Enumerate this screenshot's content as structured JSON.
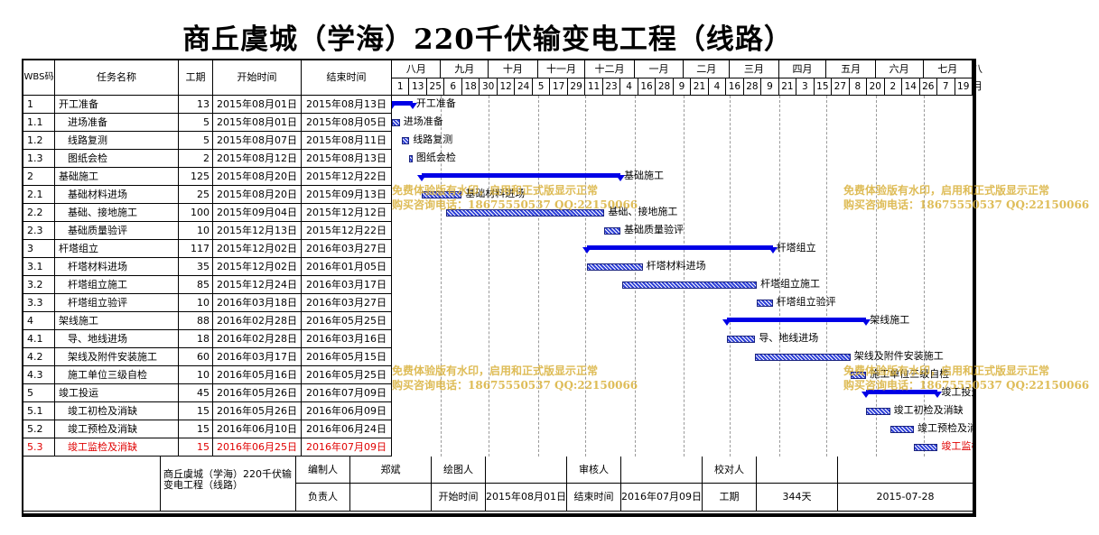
{
  "title": "商丘虞城（学海）220千伏输变电工程（线路）",
  "headers": {
    "wbs": "WBS码",
    "name": "任务名称",
    "duration": "工期",
    "start": "开始时间",
    "end": "结束时间"
  },
  "months": [
    "八月",
    "九月",
    "十月",
    "十一月",
    "十二月",
    "一月",
    "二月",
    "三月",
    "四月",
    "五月",
    "六月",
    "七月",
    "八月"
  ],
  "days": [
    "1",
    "13",
    "25",
    "6",
    "18",
    "30",
    "12",
    "24",
    "5",
    "17",
    "29",
    "11",
    "23",
    "4",
    "16",
    "28",
    "9",
    "21",
    "4",
    "16",
    "28",
    "9",
    "21",
    "3",
    "15",
    "27",
    "8",
    "20",
    "2",
    "14",
    "26",
    "7",
    "19"
  ],
  "tasks": [
    {
      "wbs": "1",
      "name": "开工准备",
      "duration": "13",
      "start": "2015年08月01日",
      "end": "2015年08月13日",
      "summary": true,
      "indent": 0,
      "s": 0,
      "d": 13
    },
    {
      "wbs": "1.1",
      "name": "进场准备",
      "duration": "5",
      "start": "2015年08月01日",
      "end": "2015年08月05日",
      "summary": false,
      "indent": 1,
      "s": 0,
      "d": 5
    },
    {
      "wbs": "1.2",
      "name": "线路复测",
      "duration": "5",
      "start": "2015年08月07日",
      "end": "2015年08月11日",
      "summary": false,
      "indent": 1,
      "s": 6,
      "d": 5
    },
    {
      "wbs": "1.3",
      "name": "图纸会检",
      "duration": "2",
      "start": "2015年08月12日",
      "end": "2015年08月13日",
      "summary": false,
      "indent": 1,
      "s": 11,
      "d": 2
    },
    {
      "wbs": "2",
      "name": "基础施工",
      "duration": "125",
      "start": "2015年08月20日",
      "end": "2015年12月22日",
      "summary": true,
      "indent": 0,
      "s": 19,
      "d": 125
    },
    {
      "wbs": "2.1",
      "name": "基础材料进场",
      "duration": "25",
      "start": "2015年08月20日",
      "end": "2015年09月13日",
      "summary": false,
      "indent": 1,
      "s": 19,
      "d": 25
    },
    {
      "wbs": "2.2",
      "name": "基础、接地施工",
      "duration": "100",
      "start": "2015年09月04日",
      "end": "2015年12月12日",
      "summary": false,
      "indent": 1,
      "s": 34,
      "d": 100
    },
    {
      "wbs": "2.3",
      "name": "基础质量验评",
      "duration": "10",
      "start": "2015年12月13日",
      "end": "2015年12月22日",
      "summary": false,
      "indent": 1,
      "s": 134,
      "d": 10
    },
    {
      "wbs": "3",
      "name": "杆塔组立",
      "duration": "117",
      "start": "2015年12月02日",
      "end": "2016年03月27日",
      "summary": true,
      "indent": 0,
      "s": 123,
      "d": 117
    },
    {
      "wbs": "3.1",
      "name": "杆塔材料进场",
      "duration": "35",
      "start": "2015年12月02日",
      "end": "2016年01月05日",
      "summary": false,
      "indent": 1,
      "s": 123,
      "d": 35
    },
    {
      "wbs": "3.2",
      "name": "杆塔组立施工",
      "duration": "85",
      "start": "2015年12月24日",
      "end": "2016年03月17日",
      "summary": false,
      "indent": 1,
      "s": 145,
      "d": 85
    },
    {
      "wbs": "3.3",
      "name": "杆塔组立验评",
      "duration": "10",
      "start": "2016年03月18日",
      "end": "2016年03月27日",
      "summary": false,
      "indent": 1,
      "s": 230,
      "d": 10
    },
    {
      "wbs": "4",
      "name": "架线施工",
      "duration": "88",
      "start": "2016年02月28日",
      "end": "2016年05月25日",
      "summary": true,
      "indent": 0,
      "s": 211,
      "d": 88
    },
    {
      "wbs": "4.1",
      "name": "导、地线进场",
      "duration": "18",
      "start": "2016年02月28日",
      "end": "2016年03月16日",
      "summary": false,
      "indent": 1,
      "s": 211,
      "d": 18
    },
    {
      "wbs": "4.2",
      "name": "架线及附件安装施工",
      "duration": "60",
      "start": "2016年03月17日",
      "end": "2016年05月15日",
      "summary": false,
      "indent": 1,
      "s": 229,
      "d": 60
    },
    {
      "wbs": "4.3",
      "name": "施工单位三级自检",
      "duration": "10",
      "start": "2016年05月16日",
      "end": "2016年05月25日",
      "summary": false,
      "indent": 1,
      "s": 289,
      "d": 10
    },
    {
      "wbs": "5",
      "name": "竣工投运",
      "duration": "45",
      "start": "2016年05月26日",
      "end": "2016年07月09日",
      "summary": true,
      "indent": 0,
      "s": 299,
      "d": 45
    },
    {
      "wbs": "5.1",
      "name": "竣工初检及消缺",
      "duration": "15",
      "start": "2016年05月26日",
      "end": "2016年06月09日",
      "summary": false,
      "indent": 1,
      "s": 299,
      "d": 15
    },
    {
      "wbs": "5.2",
      "name": "竣工预检及消缺",
      "duration": "15",
      "start": "2016年06月10日",
      "end": "2016年06月24日",
      "summary": false,
      "indent": 1,
      "s": 314,
      "d": 15
    },
    {
      "wbs": "5.3",
      "name": "竣工监检及消缺",
      "duration": "15",
      "start": "2016年06月25日",
      "end": "2016年07月09日",
      "summary": false,
      "indent": 1,
      "s": 329,
      "d": 15,
      "highlight": true
    }
  ],
  "watermark": {
    "line1": "免费体验版有水印，启用和正式版显示正常",
    "line2": "购买咨询电话：18675550537 QQ:22150066"
  },
  "footer": {
    "project": "商丘虞城（学海）220千伏输变电工程（线路）",
    "editor_label": "编制人",
    "editor_value": "郑斌",
    "drawer_label": "绘图人",
    "drawer_value": "",
    "reviewer_label": "审核人",
    "reviewer_value": "",
    "checker_label": "校对人",
    "checker_value": "",
    "manager_label": "负责人",
    "manager_value": "",
    "start_label": "开始时间",
    "start_value": "2015年08月01日",
    "end_label": "结束时间",
    "end_value": "2016年07月09日",
    "duration_label": "工期",
    "duration_value": "344天",
    "date_value": "2015-07-28"
  },
  "colors": {
    "bar": "#2f41d8",
    "summary": "#0000e6",
    "highlight": "#e00000",
    "watermark": "#d9b13a"
  }
}
